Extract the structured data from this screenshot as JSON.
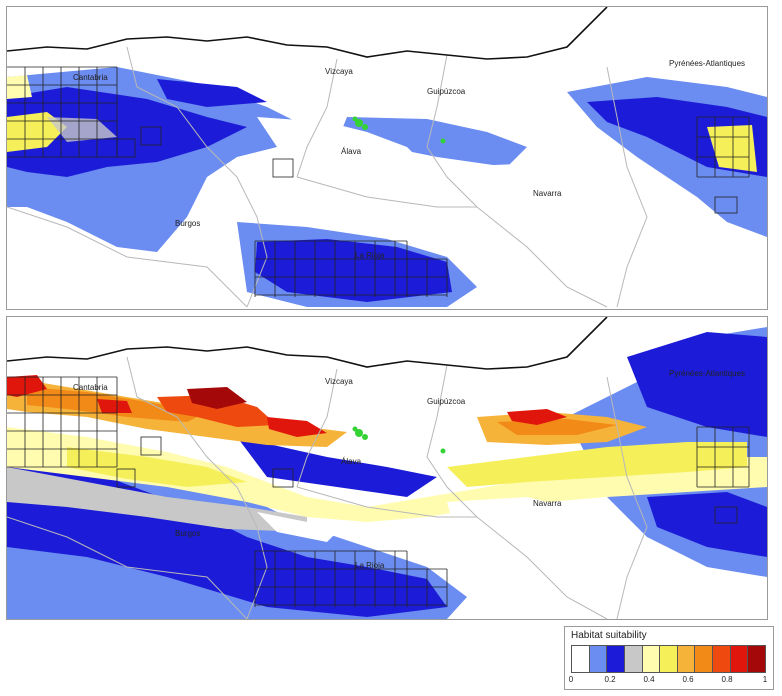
{
  "maps": [
    {
      "id": "top",
      "labels": {
        "cantabria": "Cantabria",
        "vizcaya": "Vizcaya",
        "guipuzcoa": "Guipúzcoa",
        "pyrenees": "Pyrénées-Atlantiques",
        "alava": "Álava",
        "navarra": "Navarra",
        "burgos": "Burgos",
        "la_rioja": "La Rioja"
      }
    },
    {
      "id": "bottom",
      "labels": {
        "cantabria": "Cantabria",
        "vizcaya": "Vizcaya",
        "guipuzcoa": "Guipúzcoa",
        "pyrenees": "Pyrénées-Atlantiques",
        "alava": "Álava",
        "navarra": "Navarra",
        "burgos": "Burgos",
        "la_rioja": "La Rioja"
      }
    }
  ],
  "legend": {
    "title": "Habitat suitability",
    "ticks": [
      "0",
      "0.2",
      "0.4",
      "0.6",
      "0.8",
      "1"
    ],
    "colors": [
      "#ffffff",
      "#6b8cf0",
      "#1c1cd8",
      "#c8c8c8",
      "#fffcb0",
      "#f5ef5a",
      "#f6b33a",
      "#f28a18",
      "#ee4a10",
      "#e0160c",
      "#a50808"
    ]
  },
  "colors": {
    "coast": "#111111",
    "border": "#b8b8b8",
    "grid": "#222222",
    "sighting": "#35d235"
  }
}
